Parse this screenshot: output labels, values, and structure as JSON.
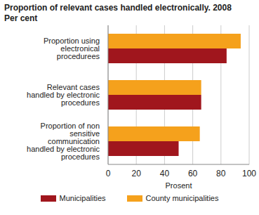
{
  "chart_data": {
    "type": "bar",
    "orientation": "horizontal",
    "title": "Proportion of relevant cases handled electronically. 2008",
    "subtitle": "Per cent",
    "x_label": "Prosent",
    "categories": [
      "Proportion using electronical procedurees",
      "Relevant cases handled by electronic procedures",
      "Proportion of non sensitive communication  handled by electronic procedures"
    ],
    "series": [
      {
        "name": "Municipalities",
        "color": "#a0161d",
        "values": [
          84,
          66,
          50
        ]
      },
      {
        "name": "County municipalities",
        "color": "#f5a11c",
        "values": [
          94,
          66,
          65
        ]
      }
    ],
    "xlim": [
      0,
      100
    ],
    "xticks": [
      0,
      20,
      40,
      60,
      80,
      100
    ],
    "grid": true,
    "legend": "bottom"
  }
}
